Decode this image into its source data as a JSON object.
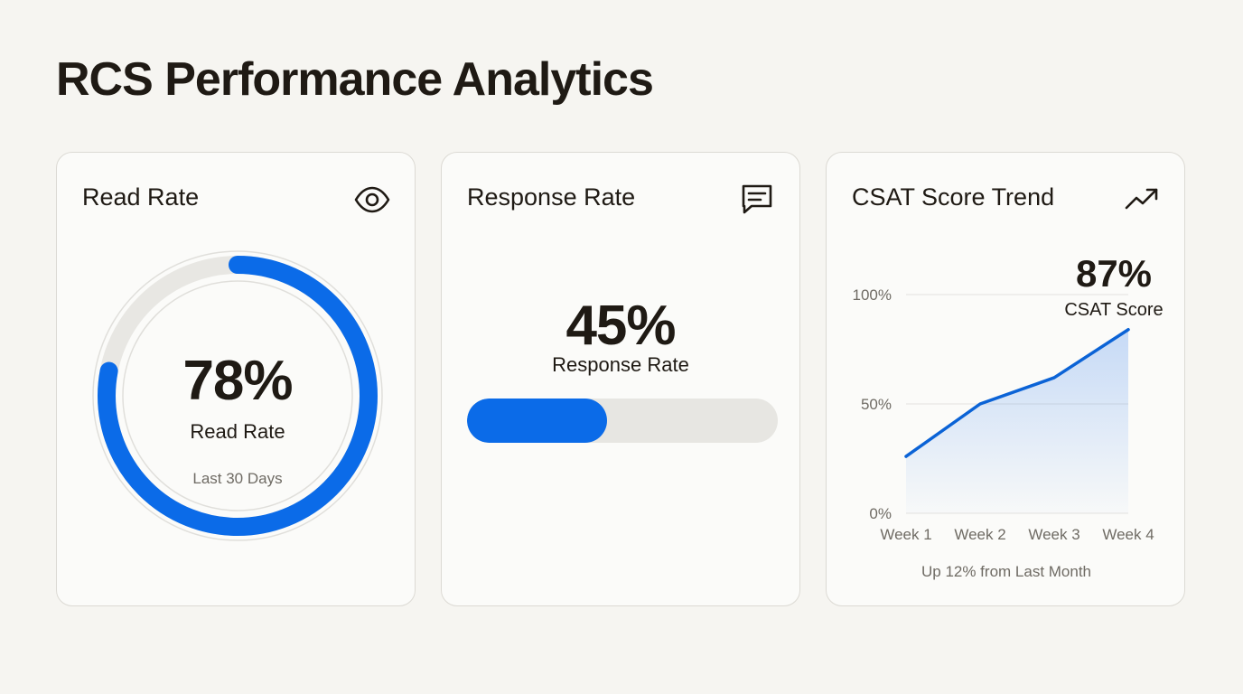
{
  "page": {
    "title": "RCS Performance Analytics"
  },
  "read_rate_card": {
    "title": "Read Rate",
    "icon": "eye-icon",
    "value_label": "78%",
    "value_fraction": 0.78,
    "caption": "Read Rate",
    "period": "Last 30 Days",
    "accent": "#0b6be8"
  },
  "response_rate_card": {
    "title": "Response Rate",
    "icon": "message-square-icon",
    "value_label": "45%",
    "value_fraction": 0.45,
    "caption": "Response Rate",
    "accent": "#0b6be8"
  },
  "csat_card": {
    "title": "CSAT Score Trend",
    "icon": "trending-up-icon",
    "value_label": "87%",
    "caption": "CSAT Score",
    "note": "Up 12% from Last Month"
  },
  "chart_data": {
    "type": "area",
    "title": "CSAT Score Trend",
    "categories": [
      "Week 1",
      "Week 2",
      "Week 3",
      "Week 4"
    ],
    "values": [
      26,
      50,
      62,
      84
    ],
    "ylim": [
      0,
      100
    ],
    "y_ticks": [
      0,
      50,
      100
    ],
    "y_tick_labels": [
      "0%",
      "50%",
      "100%"
    ],
    "xlabel": "",
    "ylabel": "",
    "grid": true,
    "line_color": "#0b63d6"
  }
}
